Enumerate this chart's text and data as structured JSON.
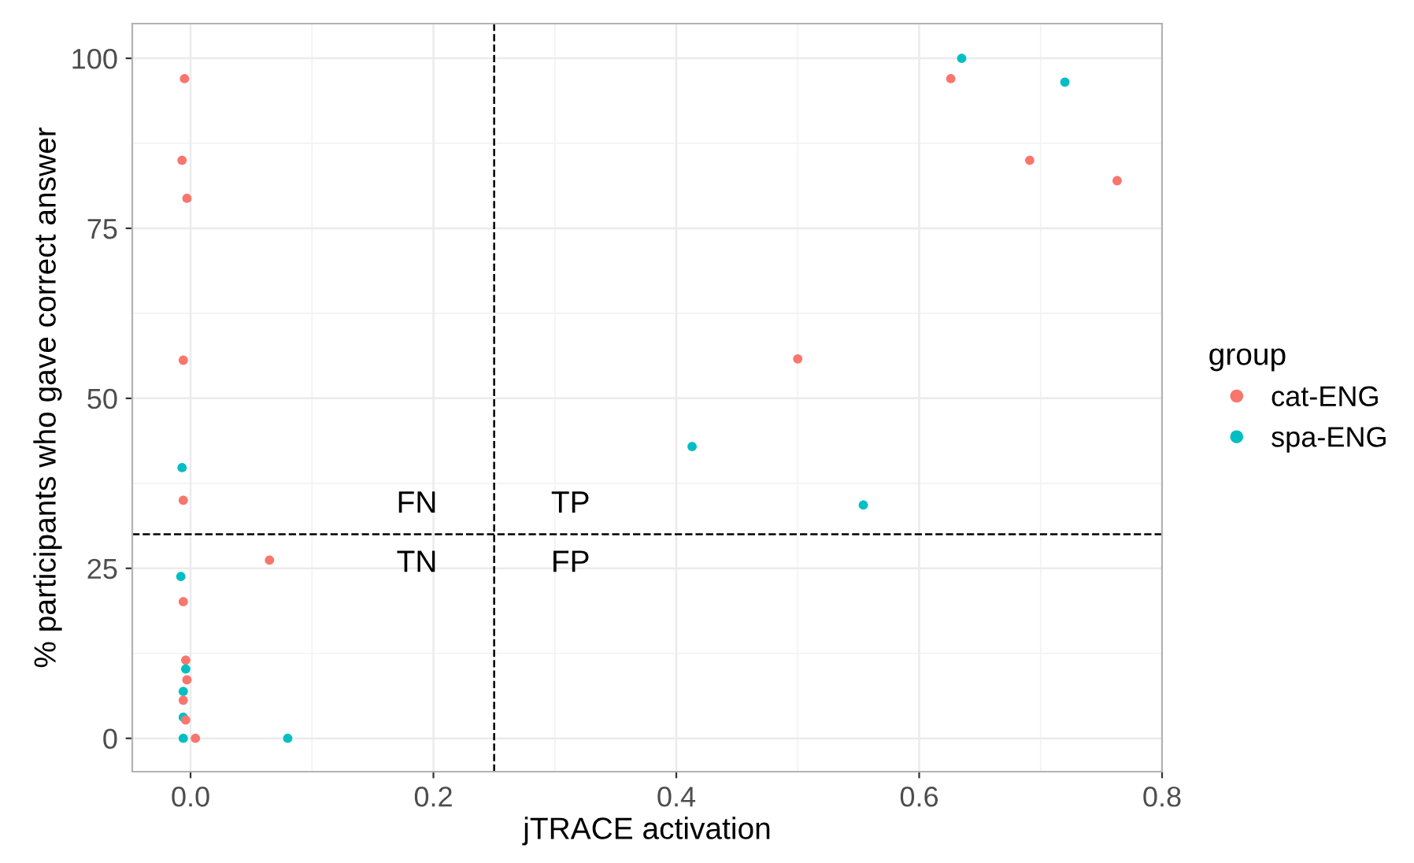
{
  "chart_data": {
    "type": "scatter",
    "xlabel": "jTRACE activation",
    "ylabel": "% participants who gave correct answer",
    "legend_title": "group",
    "legend": "right",
    "grid": true,
    "marker": "circle",
    "xlim": [
      -0.048,
      0.8
    ],
    "ylim": [
      -4.9,
      105.1
    ],
    "xticks": [
      {
        "value": 0.0,
        "label": "0.0"
      },
      {
        "value": 0.2,
        "label": "0.2"
      },
      {
        "value": 0.4,
        "label": "0.4"
      },
      {
        "value": 0.6,
        "label": "0.6"
      },
      {
        "value": 0.8,
        "label": "0.8"
      }
    ],
    "yticks": [
      0,
      25,
      50,
      75,
      100
    ],
    "series": [
      {
        "name": "cat-ENG",
        "color": "#f8766d",
        "x": [
          -0.005,
          -0.007,
          -0.003,
          -0.006,
          -0.006,
          -0.006,
          -0.004,
          -0.003,
          -0.006,
          -0.004,
          0.004,
          0.065,
          0.5,
          0.626,
          0.691,
          0.763
        ],
        "values": [
          97,
          85,
          79.4,
          55.6,
          35,
          20.1,
          11.5,
          8.6,
          5.6,
          2.7,
          0,
          26.2,
          55.8,
          97,
          85,
          82
        ]
      },
      {
        "name": "spa-ENG",
        "color": "#00bfc4",
        "x": [
          -0.007,
          -0.008,
          -0.004,
          -0.006,
          -0.006,
          -0.006,
          0.08,
          0.413,
          0.554,
          0.635,
          0.72
        ],
        "values": [
          39.8,
          23.8,
          10.2,
          6.9,
          3.1,
          0,
          0,
          42.9,
          34.3,
          100,
          96.5
        ]
      }
    ],
    "ref_lines": [
      {
        "axis": "x",
        "value": 0.25,
        "line_style": "dashed",
        "color": "#000000"
      },
      {
        "axis": "y",
        "value": 30,
        "line_style": "dashed",
        "color": "#000000"
      }
    ],
    "annotations": [
      "FN",
      "TP",
      "TN",
      "FP"
    ]
  }
}
